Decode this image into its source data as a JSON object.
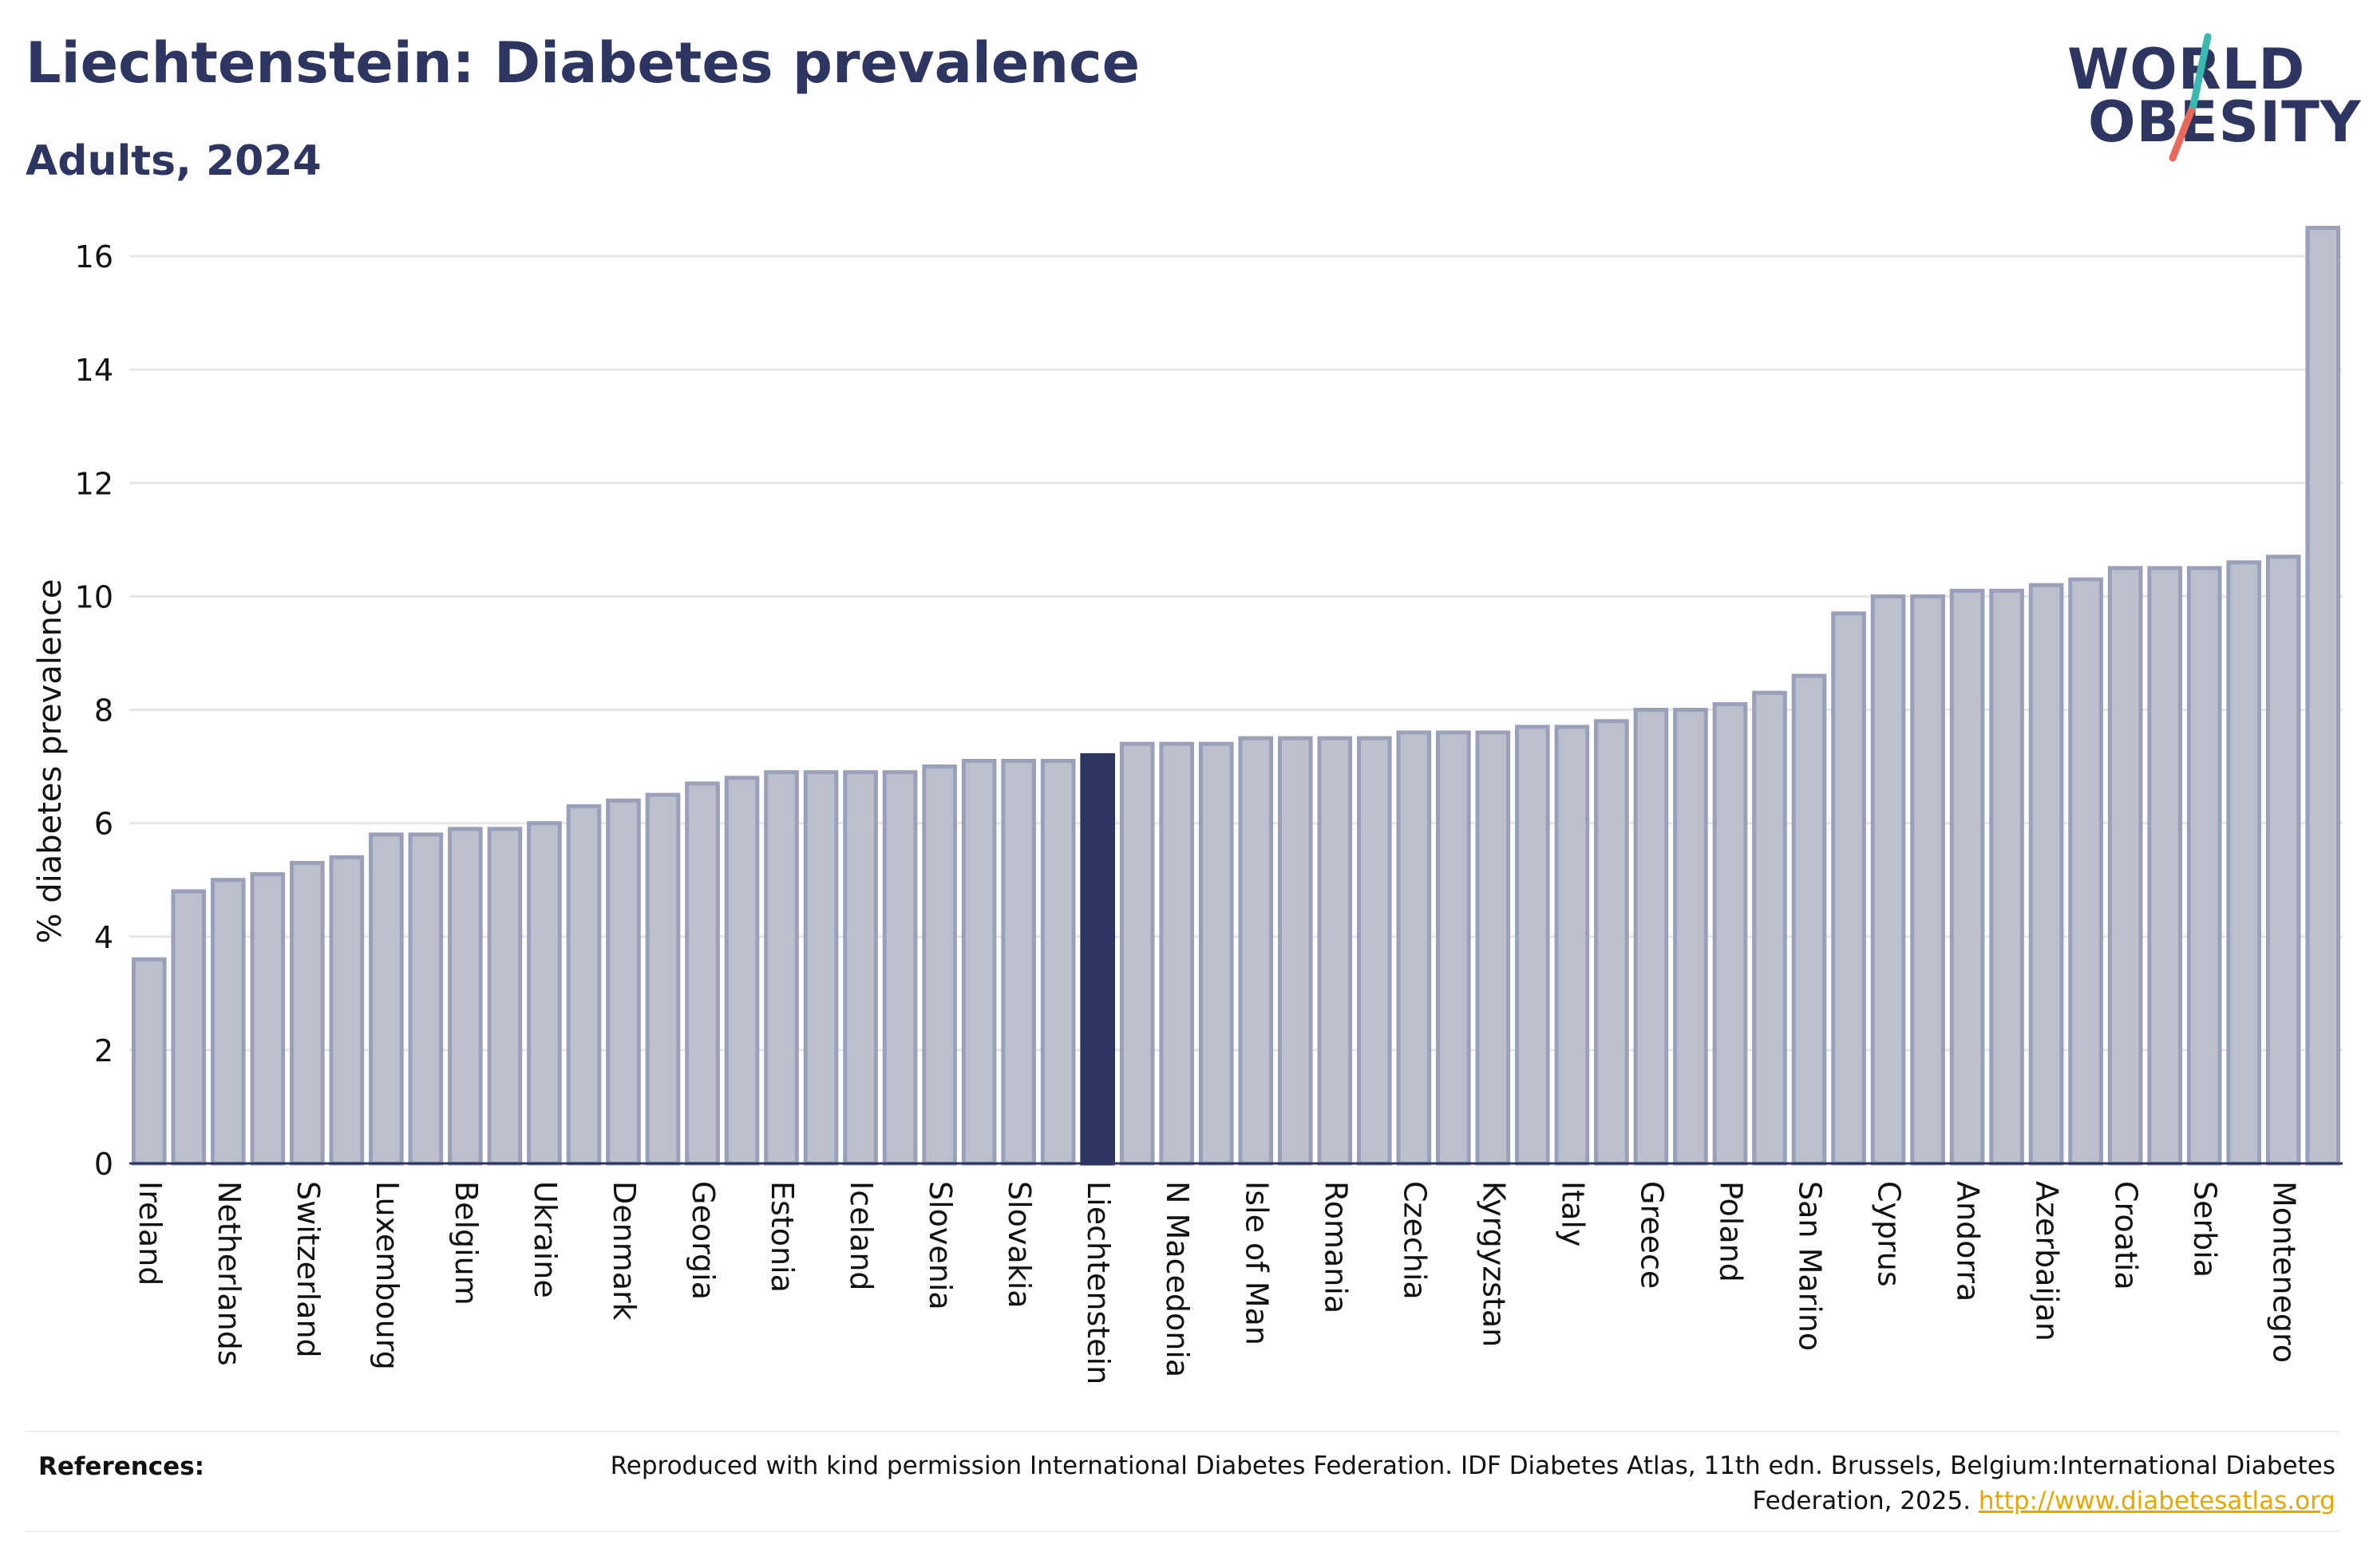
{
  "header": {
    "title": "Liechtenstein: Diabetes prevalence",
    "subtitle": "Adults, 2024"
  },
  "logo": {
    "line1": "WORLD",
    "line2": "OBESITY"
  },
  "colors": {
    "bar": "#bcc0cc",
    "bar_border": "#9a9fba",
    "highlight": "#2d3561",
    "title": "#2d3561",
    "link": "#e6a700"
  },
  "chart_data": {
    "type": "bar",
    "ylabel": "% diabetes prevalence",
    "ylim": [
      0,
      17
    ],
    "yticks": [
      0,
      2,
      4,
      6,
      8,
      10,
      12,
      14,
      16
    ],
    "grid": true,
    "highlight": "Liechtenstein",
    "categories": [
      "Ireland",
      "",
      "Netherlands",
      "",
      "Switzerland",
      "",
      "Luxembourg",
      "",
      "Belgium",
      "",
      "Ukraine",
      "",
      "Denmark",
      "",
      "Georgia",
      "",
      "Estonia",
      "",
      "Iceland",
      "",
      "Slovenia",
      "",
      "Slovakia",
      "",
      "Liechtenstein",
      "",
      "N Macedonia",
      "",
      "Isle of Man",
      "",
      "Romania",
      "",
      "Czechia",
      "",
      "Kyrgyzstan",
      "",
      "Italy",
      "",
      "Greece",
      "",
      "Poland",
      "",
      "San Marino",
      "",
      "Cyprus",
      "",
      "Andorra",
      "",
      "Azerbaijan",
      "",
      "Croatia",
      "",
      "Serbia",
      "",
      "Montenegro",
      ""
    ],
    "values": [
      3.6,
      4.8,
      5.0,
      5.1,
      5.3,
      5.4,
      5.8,
      5.8,
      5.9,
      5.9,
      6.0,
      6.3,
      6.4,
      6.5,
      6.7,
      6.8,
      6.9,
      6.9,
      6.9,
      6.9,
      7.0,
      7.1,
      7.1,
      7.1,
      7.2,
      7.4,
      7.4,
      7.4,
      7.5,
      7.5,
      7.5,
      7.5,
      7.6,
      7.6,
      7.6,
      7.7,
      7.7,
      7.8,
      8.0,
      8.0,
      8.1,
      8.3,
      8.6,
      9.7,
      10.0,
      10.0,
      10.1,
      10.1,
      10.2,
      10.3,
      10.5,
      10.5,
      10.5,
      10.6,
      10.7,
      16.5
    ]
  },
  "references": {
    "label": "References:",
    "text": "Reproduced with kind permission International Diabetes Federation. IDF Diabetes Atlas, 11th edn. Brussels, Belgium:International Diabetes Federation, 2025.",
    "link": "http://www.diabetesatlas.org"
  }
}
